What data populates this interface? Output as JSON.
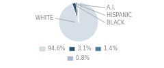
{
  "chart_data": {
    "type": "pie",
    "categories": [
      "WHITE",
      "BLACK",
      "HISPANIC",
      "A.I."
    ],
    "values": [
      94.6,
      3.1,
      1.4,
      0.8
    ],
    "value_labels": [
      "94.6%",
      "3.1%",
      "1.4%",
      "0.8%"
    ],
    "colors": [
      "#d6dfe8",
      "#2d5070",
      "#4a7a9b",
      "#a8bece"
    ],
    "legend": "bottom"
  }
}
